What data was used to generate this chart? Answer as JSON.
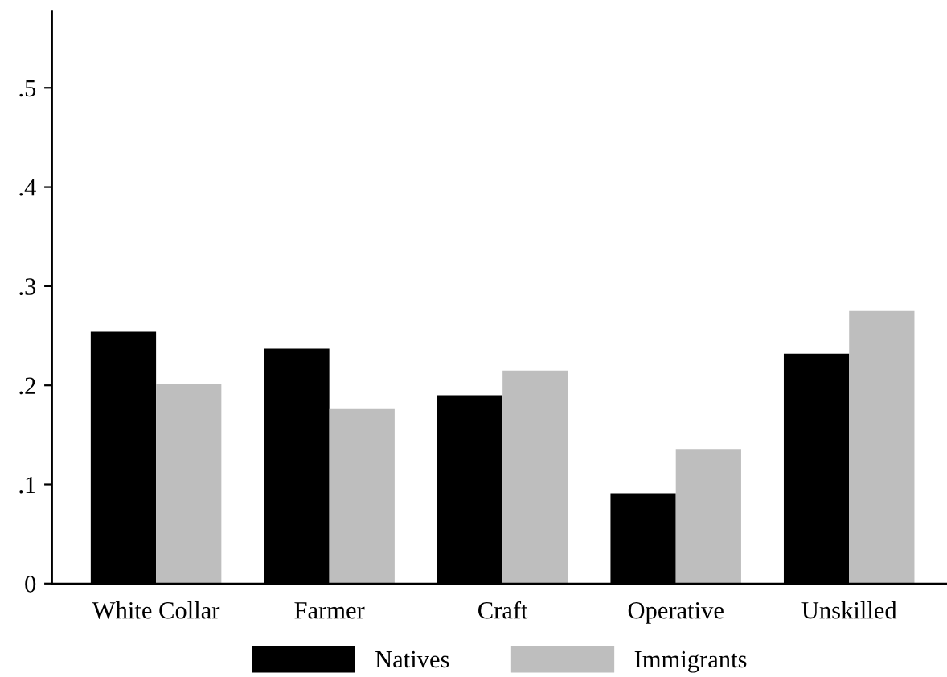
{
  "chart_data": {
    "type": "bar",
    "categories": [
      "White Collar",
      "Farmer",
      "Craft",
      "Operative",
      "Unskilled"
    ],
    "series": [
      {
        "name": "Natives",
        "color": "#000000",
        "values": [
          0.254,
          0.237,
          0.19,
          0.091,
          0.232
        ]
      },
      {
        "name": "Immigrants",
        "color": "#bebebe",
        "values": [
          0.201,
          0.176,
          0.215,
          0.135,
          0.275
        ]
      }
    ],
    "ylim": [
      0,
      0.577
    ],
    "yticks": [
      0,
      {
        "value": 0.1,
        "label": ".1"
      },
      {
        "value": 0.2,
        "label": ".2"
      },
      {
        "value": 0.3,
        "label": ".3"
      },
      {
        "value": 0.4,
        "label": ".4"
      },
      {
        "value": 0.5,
        "label": ".5"
      }
    ],
    "grid": false,
    "legend": "bottom"
  }
}
